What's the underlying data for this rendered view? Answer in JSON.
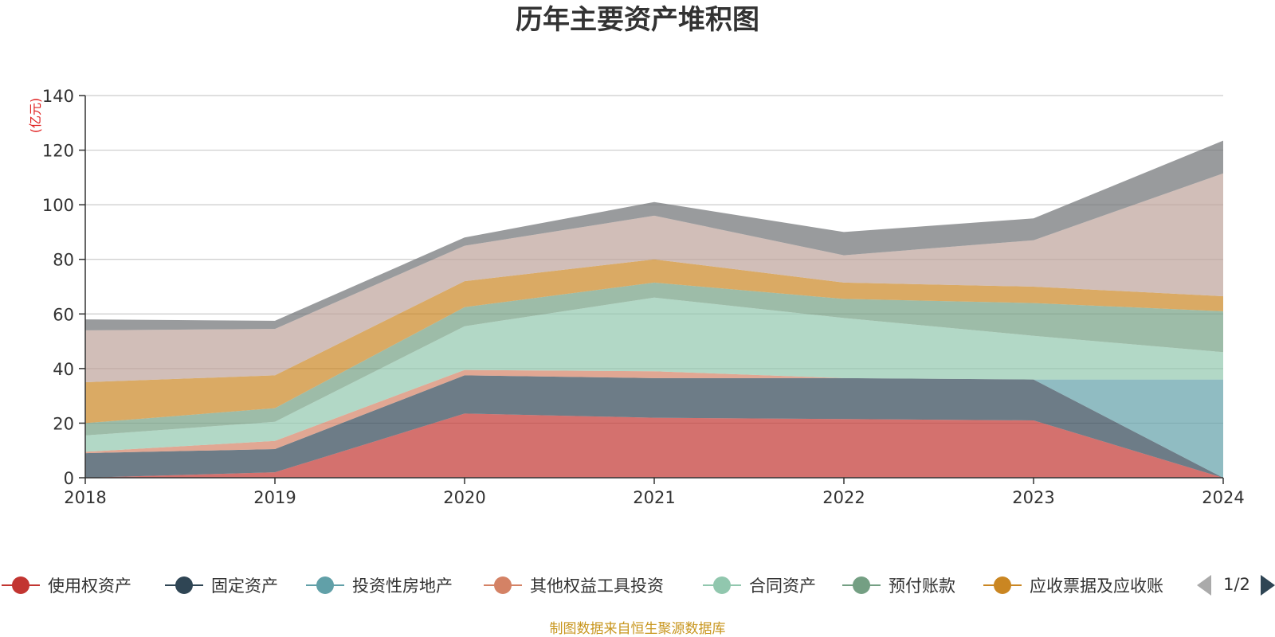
{
  "chart_data": {
    "type": "area",
    "stacked": true,
    "title": "历年主要资产堆积图",
    "unit_label": "(亿元)",
    "source": "制图数据来自恒生聚源数据库",
    "x": [
      "2018",
      "2019",
      "2020",
      "2021",
      "2022",
      "2023",
      "2024"
    ],
    "ylim": [
      0,
      140
    ],
    "yticks": [
      0,
      20,
      40,
      60,
      80,
      100,
      120,
      140
    ],
    "grid": true,
    "legend_position": "bottom",
    "legend_page": "1/2",
    "series": [
      {
        "name": "使用权资产",
        "color": "#c23531",
        "values": [
          0.0,
          2.0,
          23.5,
          22.0,
          21.5,
          21.0,
          0.0
        ]
      },
      {
        "name": "固定资产",
        "color": "#2f4554",
        "values": [
          9.0,
          8.5,
          14.0,
          14.5,
          15.0,
          15.0,
          0.0
        ]
      },
      {
        "name": "投资性房地产",
        "color": "#61a0a8",
        "values": [
          0.0,
          0.0,
          0.0,
          0.0,
          0.0,
          0.0,
          36.0
        ]
      },
      {
        "name": "其他权益工具投资",
        "color": "#d48265",
        "values": [
          0.5,
          3.0,
          2.0,
          2.5,
          0.0,
          0.0,
          0.0
        ]
      },
      {
        "name": "合同资产",
        "color": "#91c7ae",
        "values": [
          6.0,
          7.0,
          16.0,
          27.0,
          22.0,
          16.0,
          10.0
        ]
      },
      {
        "name": "预付账款",
        "color": "#749f83",
        "values": [
          4.5,
          5.0,
          7.0,
          5.5,
          7.0,
          12.0,
          15.0
        ]
      },
      {
        "name": "应收票据及应收账",
        "color": "#ca8622",
        "values": [
          15.0,
          12.0,
          9.5,
          8.5,
          6.0,
          6.0,
          5.5
        ]
      },
      {
        "name": "",
        "color": "#bda29a",
        "values": [
          19.0,
          17.0,
          13.0,
          16.0,
          10.0,
          17.0,
          45.0
        ],
        "legend": false
      },
      {
        "name": "",
        "color": "#6e7074",
        "values": [
          4.0,
          3.0,
          3.0,
          5.0,
          8.5,
          8.0,
          12.0
        ],
        "legend": false
      }
    ]
  }
}
